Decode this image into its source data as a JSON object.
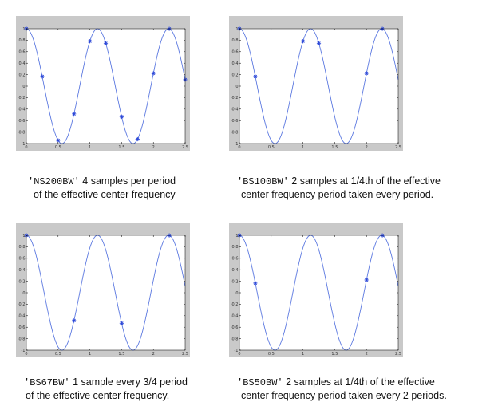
{
  "chart_data": [
    {
      "type": "line",
      "function": "cos(2*pi*x/1.12)",
      "xlim": [
        0,
        2.5
      ],
      "ylim": [
        -1,
        1
      ],
      "xticks": [
        "0",
        "0.5",
        "1",
        "1.5",
        "2",
        "2.5"
      ],
      "yticks": [
        "1",
        "0.8",
        "0.6",
        "0.4",
        "0.2",
        "0",
        "-0.2",
        "-0.4",
        "-0.6",
        "-0.8",
        "-1"
      ],
      "samples_x": [
        0,
        0.25,
        0.5,
        0.75,
        1.0,
        1.25,
        1.5,
        1.75,
        2.0,
        2.25,
        2.5
      ],
      "code": "'NS200BW'",
      "desc_line1": " 4 samples per period",
      "desc_line2": "of the effective center frequency"
    },
    {
      "type": "line",
      "function": "cos(2*pi*x/1.12)",
      "xlim": [
        0,
        2.5
      ],
      "ylim": [
        -1,
        1
      ],
      "xticks": [
        "0",
        "0.5",
        "1",
        "1.5",
        "2",
        "2.5"
      ],
      "yticks": [
        "1",
        "0.8",
        "0.6",
        "0.4",
        "0.2",
        "0",
        "-0.2",
        "-0.4",
        "-0.6",
        "-0.8",
        "-1"
      ],
      "samples_x": [
        0,
        0.25,
        1.0,
        1.25,
        2.0,
        2.25
      ],
      "code": "'BS100BW'",
      "desc_line1": " 2 samples at 1/4th of the effective",
      "desc_line2": "center frequency period taken every period."
    },
    {
      "type": "line",
      "function": "cos(2*pi*x/1.12)",
      "xlim": [
        0,
        2.5
      ],
      "ylim": [
        -1,
        1
      ],
      "xticks": [
        "0",
        "0.5",
        "1",
        "1.5",
        "2",
        "2.5"
      ],
      "yticks": [
        "1",
        "0.8",
        "0.6",
        "0.4",
        "0.2",
        "0",
        "-0.2",
        "-0.4",
        "-0.6",
        "-0.8",
        "-1"
      ],
      "samples_x": [
        0,
        0.75,
        1.5,
        2.25
      ],
      "code": "'BS67BW'",
      "desc_line1": " 1 sample every 3/4 period",
      "desc_line2": "of the effective center frequency."
    },
    {
      "type": "line",
      "function": "cos(2*pi*x/1.12)",
      "xlim": [
        0,
        2.5
      ],
      "ylim": [
        -1,
        1
      ],
      "xticks": [
        "0",
        "0.5",
        "1",
        "1.5",
        "2",
        "2.5"
      ],
      "yticks": [
        "1",
        "0.8",
        "0.6",
        "0.4",
        "0.2",
        "0",
        "-0.2",
        "-0.4",
        "-0.6",
        "-0.8",
        "-1"
      ],
      "samples_x": [
        0,
        0.25,
        2.0,
        2.25
      ],
      "code": "'BS50BW'",
      "desc_line1": " 2 samples at 1/4th of the effective",
      "desc_line2": "center frequency period taken every 2 periods."
    }
  ],
  "colors": {
    "curve": "#5b78e0",
    "marker": "#2c48d8",
    "frame": "#c9c9c9",
    "plot_bg": "#ffffff",
    "axis": "#000000"
  }
}
